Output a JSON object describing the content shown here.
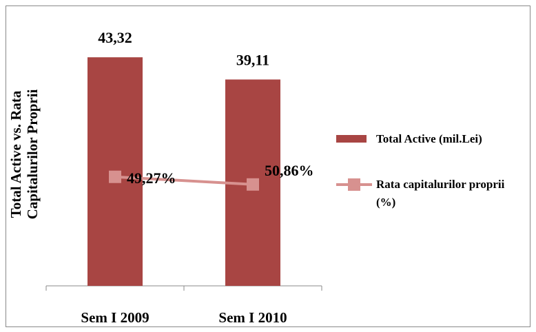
{
  "chart_data": {
    "type": "bar",
    "y_label": "Total Active vs. Rata Capitalurilor Proprii",
    "categories": [
      "Sem I 2009",
      "Sem I 2010"
    ],
    "series": [
      {
        "name": "Total Active (mil.Lei)",
        "type": "bar",
        "color": "#a84543",
        "values": [
          43.32,
          39.11
        ],
        "value_labels": [
          "43,32",
          "39,11"
        ]
      },
      {
        "name": "Rata capitalurilor proprii (%)",
        "type": "line",
        "axis": "y2",
        "color": "#d7918f",
        "values": [
          49.27,
          50.86
        ],
        "value_labels": [
          "49,27%",
          "50,86%"
        ]
      }
    ],
    "ylim": [
      0,
      50
    ],
    "y2lim": [
      17,
      72
    ],
    "y2_reversed": true,
    "legend": "right"
  }
}
